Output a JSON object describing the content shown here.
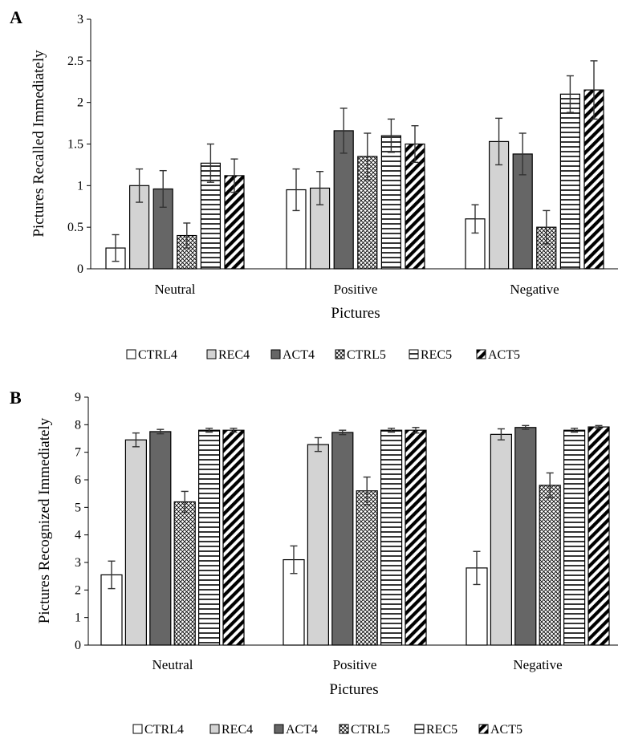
{
  "chart_data": [
    {
      "panel": "A",
      "type": "bar",
      "categories": [
        "Neutral",
        "Positive",
        "Negative"
      ],
      "xlabel": "Pictures",
      "ylabel": "Pictures Recalled Immediately",
      "ylim": [
        0,
        3
      ],
      "yticks": [
        "0",
        "0.5",
        "1",
        "1.5",
        "2",
        "2.5",
        "3"
      ],
      "series": [
        {
          "name": "CTRL4",
          "values": [
            0.25,
            0.95,
            0.6
          ],
          "errors": [
            0.16,
            0.25,
            0.17
          ]
        },
        {
          "name": "REC4",
          "values": [
            1.0,
            0.97,
            1.53
          ],
          "errors": [
            0.2,
            0.2,
            0.28
          ]
        },
        {
          "name": "ACT4",
          "values": [
            0.96,
            1.66,
            1.38
          ],
          "errors": [
            0.22,
            0.27,
            0.25
          ]
        },
        {
          "name": "CTRL5",
          "values": [
            0.4,
            1.35,
            0.5
          ],
          "errors": [
            0.15,
            0.28,
            0.2
          ]
        },
        {
          "name": "REC5",
          "values": [
            1.27,
            1.6,
            2.1
          ],
          "errors": [
            0.23,
            0.2,
            0.22
          ]
        },
        {
          "name": "ACT5",
          "values": [
            1.12,
            1.5,
            2.15
          ],
          "errors": [
            0.2,
            0.22,
            0.35
          ]
        }
      ]
    },
    {
      "panel": "B",
      "type": "bar",
      "categories": [
        "Neutral",
        "Positive",
        "Negative"
      ],
      "xlabel": "Pictures",
      "ylabel": "Pictures Recognized Immediately",
      "ylim": [
        0,
        9
      ],
      "yticks": [
        "0",
        "1",
        "2",
        "3",
        "4",
        "5",
        "6",
        "7",
        "8",
        "9"
      ],
      "series": [
        {
          "name": "CTRL4",
          "values": [
            2.55,
            3.1,
            2.8
          ],
          "errors": [
            0.5,
            0.5,
            0.6
          ]
        },
        {
          "name": "REC4",
          "values": [
            7.45,
            7.28,
            7.65
          ],
          "errors": [
            0.25,
            0.25,
            0.2
          ]
        },
        {
          "name": "ACT4",
          "values": [
            7.75,
            7.72,
            7.9
          ],
          "errors": [
            0.08,
            0.08,
            0.07
          ]
        },
        {
          "name": "CTRL5",
          "values": [
            5.2,
            5.6,
            5.8
          ],
          "errors": [
            0.38,
            0.5,
            0.45
          ]
        },
        {
          "name": "REC5",
          "values": [
            7.8,
            7.8,
            7.8
          ],
          "errors": [
            0.07,
            0.07,
            0.07
          ]
        },
        {
          "name": "ACT5",
          "values": [
            7.8,
            7.8,
            7.92
          ],
          "errors": [
            0.07,
            0.1,
            0.05
          ]
        }
      ]
    }
  ],
  "series_styles": [
    {
      "fill": "white"
    },
    {
      "fill": "#d3d3d3"
    },
    {
      "fill": "#666666"
    },
    {
      "fill": "crosshatch"
    },
    {
      "fill": "horizontal-lines"
    },
    {
      "fill": "diagonal-stripes"
    }
  ]
}
